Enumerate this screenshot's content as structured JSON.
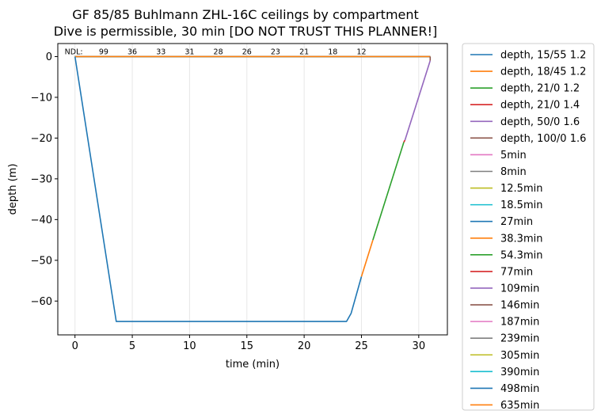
{
  "chart_data": {
    "type": "line",
    "title_line1": "GF 85/85 Buhlmann ZHL-16C ceilings by compartment",
    "title_line2": "Dive is permissible, 30 min [DO NOT TRUST THIS PLANNER!]",
    "xlabel": "time (min)",
    "ylabel": "depth (m)",
    "xlim": [
      -1.5,
      32.5
    ],
    "ylim": [
      -68.3,
      3.2
    ],
    "x_ticks": [
      0,
      5,
      10,
      15,
      20,
      25,
      30
    ],
    "y_ticks": [
      0,
      -10,
      -20,
      -30,
      -40,
      -50,
      -60
    ],
    "x_tick_labels": [
      "0",
      "5",
      "10",
      "15",
      "20",
      "25",
      "30"
    ],
    "y_tick_labels": [
      "0",
      "−10",
      "−20",
      "−30",
      "−40",
      "−50",
      "−60"
    ],
    "x_gridlines": true,
    "legend_placement": "outside-right",
    "ndl": {
      "label": "NDL:",
      "label_x": -0.9,
      "values": [
        {
          "x": 2.5,
          "text": "99"
        },
        {
          "x": 5.0,
          "text": "36"
        },
        {
          "x": 7.5,
          "text": "33"
        },
        {
          "x": 10.0,
          "text": "31"
        },
        {
          "x": 12.5,
          "text": "28"
        },
        {
          "x": 15.0,
          "text": "26"
        },
        {
          "x": 17.5,
          "text": "23"
        },
        {
          "x": 20.0,
          "text": "21"
        },
        {
          "x": 22.5,
          "text": "18"
        },
        {
          "x": 25.0,
          "text": "12"
        }
      ]
    },
    "series": [
      {
        "name": "depth, 15/55 1.2",
        "color": "#1f77b4",
        "x": [
          0,
          3.6,
          23.7,
          24.1,
          25
        ],
        "y": [
          0,
          -65,
          -65,
          -63,
          -54
        ]
      },
      {
        "name": "depth, 18/45 1.2",
        "color": "#ff7f0e",
        "x": [
          25,
          26
        ],
        "y": [
          -54,
          -45
        ]
      },
      {
        "name": "depth, 21/0 1.2",
        "color": "#2ca02c",
        "x": [
          26,
          28.7
        ],
        "y": [
          -45,
          -21
        ]
      },
      {
        "name": "depth, 21/0 1.4",
        "color": "#d62728",
        "x": [
          28.7,
          28.8
        ],
        "y": [
          -21,
          -20.5
        ]
      },
      {
        "name": "depth, 50/0 1.6",
        "color": "#9467bd",
        "x": [
          28.8,
          31
        ],
        "y": [
          -20.5,
          -1
        ]
      },
      {
        "name": "depth, 100/0 1.6",
        "color": "#8c564b",
        "x": [
          31,
          31
        ],
        "y": [
          -1,
          0
        ]
      },
      {
        "name": "5min",
        "color": "#e377c2",
        "x": [
          0,
          31
        ],
        "y": [
          0,
          0
        ]
      },
      {
        "name": "8min",
        "color": "#7f7f7f",
        "x": [
          0,
          31
        ],
        "y": [
          0,
          0
        ]
      },
      {
        "name": "12.5min",
        "color": "#bcbd22",
        "x": [
          0,
          31
        ],
        "y": [
          0,
          0
        ]
      },
      {
        "name": "18.5min",
        "color": "#17becf",
        "x": [
          0,
          31
        ],
        "y": [
          0,
          0
        ]
      },
      {
        "name": "27min",
        "color": "#1f77b4",
        "x": [
          0,
          31
        ],
        "y": [
          0,
          0
        ]
      },
      {
        "name": "38.3min",
        "color": "#ff7f0e",
        "x": [
          0,
          31
        ],
        "y": [
          0,
          0
        ]
      },
      {
        "name": "54.3min",
        "color": "#2ca02c",
        "x": [
          0,
          31
        ],
        "y": [
          0,
          0
        ]
      },
      {
        "name": "77min",
        "color": "#d62728",
        "x": [
          0,
          31
        ],
        "y": [
          0,
          0
        ]
      },
      {
        "name": "109min",
        "color": "#9467bd",
        "x": [
          0,
          31
        ],
        "y": [
          0,
          0
        ]
      },
      {
        "name": "146min",
        "color": "#8c564b",
        "x": [
          0,
          31
        ],
        "y": [
          0,
          0
        ]
      },
      {
        "name": "187min",
        "color": "#e377c2",
        "x": [
          0,
          31
        ],
        "y": [
          0,
          0
        ]
      },
      {
        "name": "239min",
        "color": "#7f7f7f",
        "x": [
          0,
          31
        ],
        "y": [
          0,
          0
        ]
      },
      {
        "name": "305min",
        "color": "#bcbd22",
        "x": [
          0,
          31
        ],
        "y": [
          0,
          0
        ]
      },
      {
        "name": "390min",
        "color": "#17becf",
        "x": [
          0,
          31
        ],
        "y": [
          0,
          0
        ]
      },
      {
        "name": "498min",
        "color": "#1f77b4",
        "x": [
          0,
          31
        ],
        "y": [
          0,
          0
        ]
      },
      {
        "name": "635min",
        "color": "#ff7f0e",
        "x": [
          0,
          31
        ],
        "y": [
          0,
          0
        ]
      }
    ]
  }
}
